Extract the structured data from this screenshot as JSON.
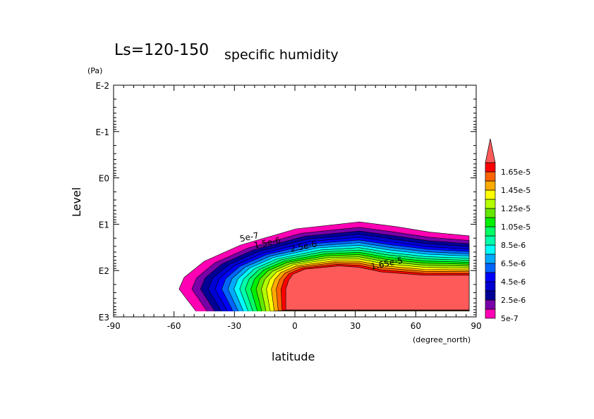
{
  "chart_data": {
    "type": "contour",
    "title": "Ls=120-150",
    "subtitle": "specific humidity",
    "xlabel": "latitude",
    "xunits": "(degree_north)",
    "ylabel": "Level",
    "yunits": "(Pa)",
    "xlim": [
      -90,
      90
    ],
    "ylim_log10": [
      -2,
      3
    ],
    "y_inverted": true,
    "xticks": [
      "-90",
      "-60",
      "-30",
      "0",
      "30",
      "60",
      "90"
    ],
    "xtick_values": [
      -90,
      -60,
      -30,
      0,
      30,
      60,
      90
    ],
    "yticks": [
      "E-2",
      "E-1",
      "E0",
      "E1",
      "E2",
      "E3"
    ],
    "ytick_values": [
      -2,
      -1,
      0,
      1,
      2,
      3
    ],
    "levels": [
      5e-07,
      1.5e-06,
      2.5e-06,
      3.5e-06,
      4.5e-06,
      5.5e-06,
      6.5e-06,
      7.5e-06,
      8.5e-06,
      9.5e-06,
      1.05e-05,
      1.15e-05,
      1.25e-05,
      1.35e-05,
      1.45e-05,
      1.55e-05,
      1.65e-05
    ],
    "colors": [
      "#ff00b4",
      "#7800a8",
      "#000096",
      "#0000d2",
      "#0000ff",
      "#0064ff",
      "#00aaff",
      "#00ffff",
      "#00ffaa",
      "#00ff64",
      "#00f000",
      "#64e600",
      "#b4ff00",
      "#ffff00",
      "#ffaa00",
      "#ff6400",
      "#ff0000"
    ],
    "over_color": "#ff5a5a",
    "colorbar_labels": [
      "1.65e-5",
      "1.45e-5",
      "1.25e-5",
      "1.05e-5",
      "8.5e-6",
      "6.5e-6",
      "4.5e-6",
      "2.5e-6",
      "5e-7"
    ],
    "colorbar_label_values": [
      1.65e-05,
      1.45e-05,
      1.25e-05,
      1.05e-05,
      8.5e-06,
      6.5e-06,
      4.5e-06,
      2.5e-06,
      5e-07
    ],
    "outer_contour_5e-7": [
      [
        -47,
        3.0
      ],
      [
        -57.5,
        2.4
      ],
      [
        -55,
        2.15
      ],
      [
        -45,
        1.8
      ],
      [
        -27,
        1.45
      ],
      [
        0.5,
        1.1
      ],
      [
        32,
        0.95
      ],
      [
        50,
        1.05
      ],
      [
        67,
        1.17
      ],
      [
        86.5,
        1.25
      ],
      [
        86.5,
        3.0
      ]
    ],
    "inner_contour_1.65e-5": [
      [
        -4.5,
        2.85
      ],
      [
        -4.5,
        2.4
      ],
      [
        -3,
        2.2
      ],
      [
        -1,
        2.08
      ],
      [
        5,
        1.97
      ],
      [
        22,
        1.9
      ],
      [
        32,
        1.93
      ],
      [
        43,
        2.03
      ],
      [
        64,
        2.1
      ],
      [
        86.5,
        2.1
      ],
      [
        86.5,
        2.85
      ]
    ],
    "contour_labels": [
      {
        "text": "5e-7",
        "lat": -27,
        "logp": 1.38
      },
      {
        "text": "1.5e-6",
        "lat": -20,
        "logp": 1.52
      },
      {
        "text": "2.5e-6",
        "lat": -2,
        "logp": 1.6
      },
      {
        "text": "1.65e-5",
        "lat": 38,
        "logp": 1.98
      }
    ]
  }
}
